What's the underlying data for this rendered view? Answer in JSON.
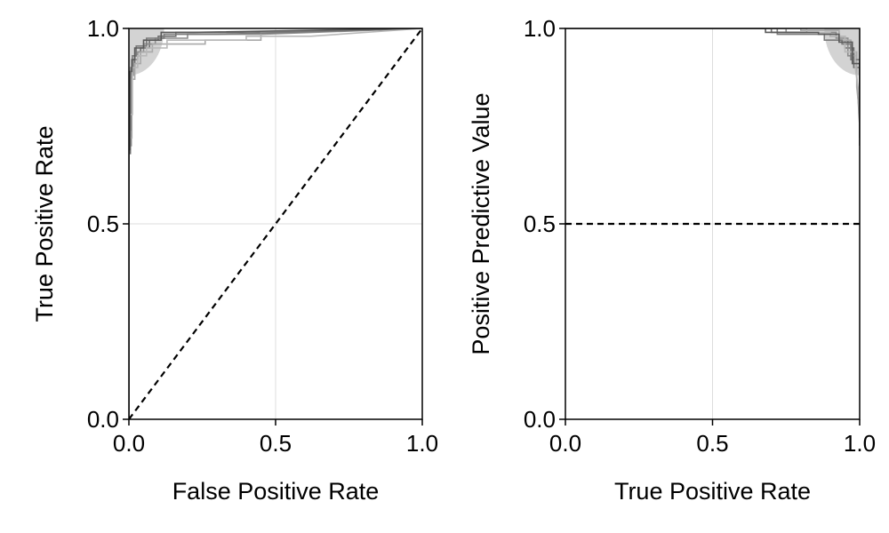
{
  "chart_data": [
    {
      "type": "line",
      "xlabel": "False Positive Rate",
      "ylabel": "True Positive Rate",
      "xlim": [
        0.0,
        1.0
      ],
      "ylim": [
        0.0,
        1.0
      ],
      "xticks": [
        0.0,
        0.5,
        1.0
      ],
      "yticks": [
        0.0,
        0.5,
        1.0
      ],
      "xtick_labels": [
        "0.0",
        "0.5",
        "1.0"
      ],
      "ytick_labels": [
        "0.0",
        "0.5",
        "1.0"
      ],
      "grid": true,
      "highlight_region": {
        "shape": "quarter-circle",
        "center": [
          0.0,
          1.0
        ],
        "radius": 0.12,
        "color": "#d3d3d3"
      },
      "reference_line": {
        "style": "dashed",
        "color": "#000000",
        "x": [
          0.0,
          1.0
        ],
        "y": [
          0.0,
          1.0
        ]
      },
      "series": [
        {
          "color": "#6e6e6e",
          "x": [
            0,
            0,
            0.005,
            0.005,
            0.01,
            0.01,
            0.02,
            0.02,
            0.04,
            0.04,
            0.07,
            0.07,
            0.1,
            0.1,
            0.16,
            0.16,
            0.35,
            1.0
          ],
          "y": [
            0,
            0.68,
            0.68,
            0.86,
            0.86,
            0.9,
            0.9,
            0.93,
            0.93,
            0.95,
            0.95,
            0.97,
            0.97,
            0.98,
            0.98,
            0.99,
            0.99,
            1.0
          ]
        },
        {
          "color": "#8c8c8c",
          "x": [
            0,
            0,
            0.008,
            0.008,
            0.015,
            0.015,
            0.03,
            0.03,
            0.05,
            0.05,
            0.09,
            0.09,
            0.2,
            0.2,
            0.45,
            1.0
          ],
          "y": [
            0,
            0.7,
            0.7,
            0.88,
            0.88,
            0.92,
            0.92,
            0.94,
            0.94,
            0.96,
            0.96,
            0.975,
            0.975,
            0.985,
            0.985,
            1.0
          ]
        },
        {
          "color": "#a9a9a9",
          "x": [
            0,
            0,
            0.01,
            0.01,
            0.02,
            0.02,
            0.04,
            0.04,
            0.08,
            0.08,
            0.26,
            0.26,
            0.45,
            0.45,
            1.0
          ],
          "y": [
            0,
            0.72,
            0.72,
            0.87,
            0.87,
            0.91,
            0.91,
            0.94,
            0.94,
            0.96,
            0.96,
            0.97,
            0.97,
            0.99,
            1.0
          ]
        },
        {
          "color": "#7a7a7a",
          "x": [
            0,
            0,
            0.006,
            0.006,
            0.012,
            0.012,
            0.025,
            0.025,
            0.06,
            0.06,
            0.12,
            0.12,
            0.3,
            1.0
          ],
          "y": [
            0,
            0.74,
            0.74,
            0.9,
            0.9,
            0.93,
            0.93,
            0.955,
            0.955,
            0.975,
            0.975,
            0.985,
            0.985,
            1.0
          ]
        },
        {
          "color": "#b8b8b8",
          "x": [
            0,
            0,
            0.012,
            0.012,
            0.03,
            0.03,
            0.06,
            0.06,
            0.13,
            0.13,
            0.4,
            0.4,
            0.62,
            1.0
          ],
          "y": [
            0,
            0.78,
            0.78,
            0.9,
            0.9,
            0.93,
            0.93,
            0.95,
            0.95,
            0.97,
            0.97,
            0.98,
            0.98,
            1.0
          ]
        },
        {
          "color": "#5a5a5a",
          "x": [
            0,
            0,
            0.004,
            0.004,
            0.01,
            0.01,
            0.02,
            0.02,
            0.05,
            0.05,
            0.11,
            0.11,
            0.22,
            1.0
          ],
          "y": [
            0,
            0.69,
            0.69,
            0.89,
            0.89,
            0.92,
            0.92,
            0.95,
            0.95,
            0.97,
            0.97,
            0.99,
            0.99,
            1.0
          ]
        }
      ]
    },
    {
      "type": "line",
      "xlabel": "True Positive Rate",
      "ylabel": "Positive Predictive Value",
      "xlim": [
        0.0,
        1.0
      ],
      "ylim": [
        0.0,
        1.0
      ],
      "xticks": [
        0.0,
        0.5,
        1.0
      ],
      "yticks": [
        0.0,
        0.5,
        1.0
      ],
      "xtick_labels": [
        "0.0",
        "0.5",
        "1.0"
      ],
      "ytick_labels": [
        "0.0",
        "0.5",
        "1.0"
      ],
      "grid": true,
      "highlight_region": {
        "shape": "quarter-circle",
        "center": [
          1.0,
          1.0
        ],
        "radius": 0.12,
        "color": "#d3d3d3"
      },
      "reference_line": {
        "style": "dashed",
        "color": "#000000",
        "x": [
          0.0,
          1.0
        ],
        "y": [
          0.5,
          0.5
        ]
      },
      "series": [
        {
          "color": "#6e6e6e",
          "x": [
            0,
            0.7,
            0.7,
            0.9,
            0.9,
            0.95,
            0.95,
            0.98,
            0.98,
            1.0,
            1.0
          ],
          "y": [
            1.0,
            1.0,
            0.99,
            0.99,
            0.98,
            0.98,
            0.95,
            0.95,
            0.9,
            0.9,
            0.72
          ]
        },
        {
          "color": "#8c8c8c",
          "x": [
            0,
            0.75,
            0.75,
            0.92,
            0.92,
            0.96,
            0.96,
            0.99,
            0.99,
            1.0
          ],
          "y": [
            1.0,
            1.0,
            0.99,
            0.99,
            0.975,
            0.975,
            0.93,
            0.93,
            0.88,
            0.75
          ]
        },
        {
          "color": "#a9a9a9",
          "x": [
            0,
            0.8,
            0.8,
            0.93,
            0.93,
            0.97,
            0.97,
            0.99,
            0.99,
            1.0
          ],
          "y": [
            1.0,
            1.0,
            0.995,
            0.995,
            0.97,
            0.97,
            0.94,
            0.94,
            0.85,
            0.78
          ]
        },
        {
          "color": "#7a7a7a",
          "x": [
            0,
            0.72,
            0.72,
            0.88,
            0.88,
            0.94,
            0.94,
            0.97,
            0.97,
            1.0,
            1.0
          ],
          "y": [
            1.0,
            1.0,
            0.985,
            0.985,
            0.97,
            0.97,
            0.96,
            0.96,
            0.92,
            0.92,
            0.8
          ]
        },
        {
          "color": "#b8b8b8",
          "x": [
            0,
            0.82,
            0.82,
            0.9,
            0.9,
            0.95,
            0.95,
            0.985,
            0.985,
            1.0
          ],
          "y": [
            1.0,
            1.0,
            0.99,
            0.99,
            0.98,
            0.98,
            0.94,
            0.94,
            0.9,
            0.82
          ]
        },
        {
          "color": "#5a5a5a",
          "x": [
            0,
            0.68,
            0.68,
            0.86,
            0.86,
            0.93,
            0.93,
            0.975,
            0.975,
            1.0,
            1.0
          ],
          "y": [
            1.0,
            1.0,
            0.99,
            0.99,
            0.985,
            0.985,
            0.965,
            0.965,
            0.91,
            0.91,
            0.7
          ]
        }
      ]
    }
  ]
}
